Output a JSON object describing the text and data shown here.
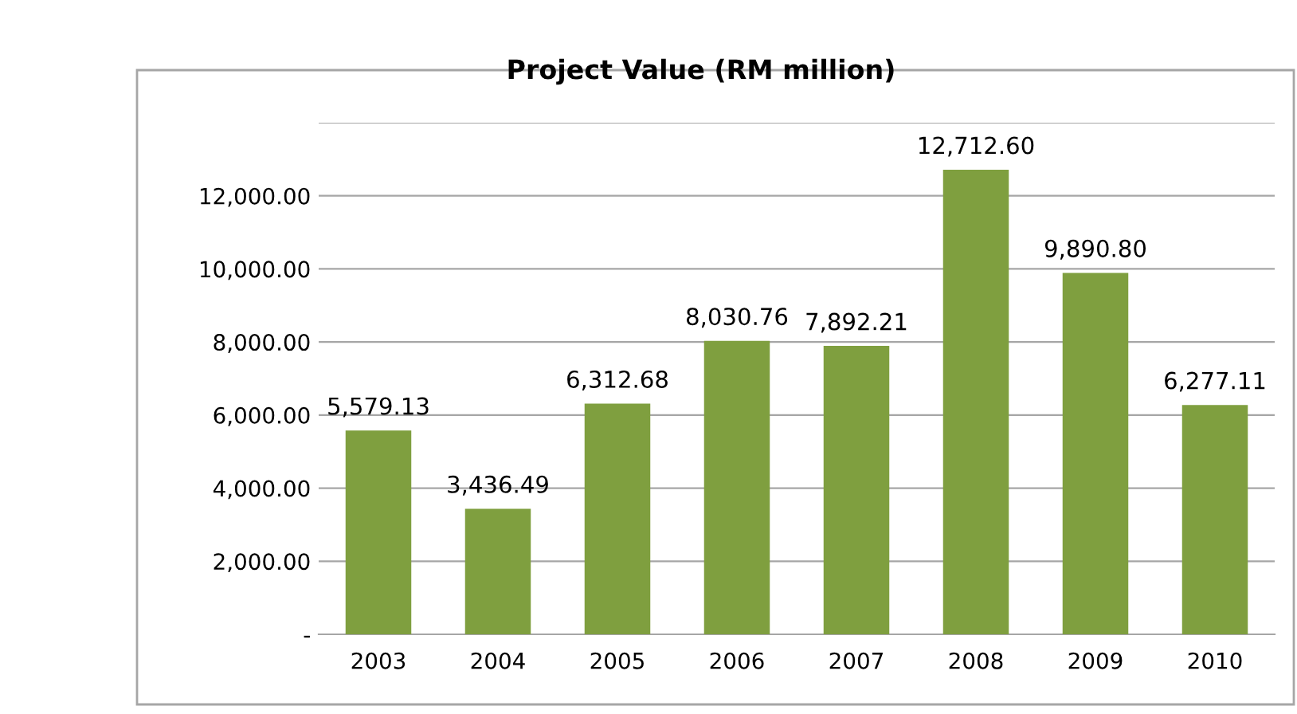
{
  "chart_data": {
    "type": "bar",
    "title": "Project Value (RM million)",
    "categories": [
      "2003",
      "2004",
      "2005",
      "2006",
      "2007",
      "2008",
      "2009",
      "2010"
    ],
    "values": [
      5579.13,
      3436.49,
      6312.68,
      8030.76,
      7892.21,
      12712.6,
      9890.8,
      6277.11
    ],
    "color": "#7f9f3f",
    "ylim": [
      0,
      14000
    ],
    "yticks": [
      {
        "value": 0,
        "label": "-"
      },
      {
        "value": 2000,
        "label": "2,000.00"
      },
      {
        "value": 4000,
        "label": "4,000.00"
      },
      {
        "value": 6000,
        "label": "6,000.00"
      },
      {
        "value": 8000,
        "label": "8,000.00"
      },
      {
        "value": 10000,
        "label": "10,000.00"
      },
      {
        "value": 12000,
        "label": "12,000.00"
      },
      {
        "value": 14000,
        "label": null
      }
    ],
    "value_labels": [
      "5,579.13",
      "3,436.49",
      "6,312.68",
      "8,030.76",
      "7,892.21",
      "12,712.60",
      "9,890.80",
      "6,277.11"
    ],
    "grid": "y"
  }
}
